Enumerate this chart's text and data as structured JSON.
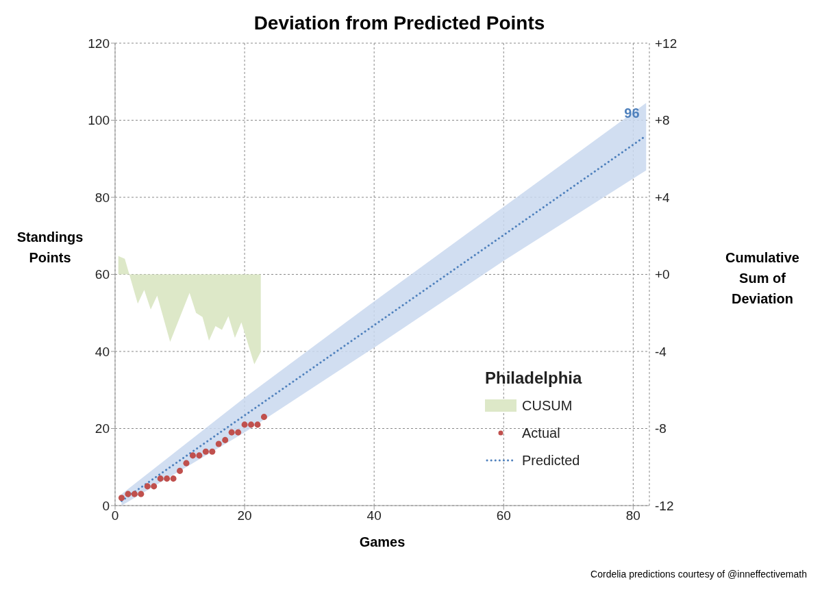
{
  "chart_data": {
    "type": "line",
    "title": "Deviation from Predicted Points",
    "xlabel": "Games",
    "ylabel": "Standings Points",
    "y2label": "Cumulative Sum of Deviation",
    "legend_title": "Philadelphia",
    "xlim": [
      0,
      82.5
    ],
    "xticks": [
      0,
      20,
      40,
      60,
      80
    ],
    "ylim": [
      0,
      120
    ],
    "yticks": [
      0,
      20,
      40,
      60,
      80,
      100,
      120
    ],
    "y2lim": [
      -12,
      12
    ],
    "y2ticks": [
      {
        "value": -12,
        "label": "-12"
      },
      {
        "value": -8,
        "label": "-8"
      },
      {
        "value": -4,
        "label": "-4"
      },
      {
        "value": 0,
        "label": "+0"
      },
      {
        "value": 4,
        "label": "+4"
      },
      {
        "value": 8,
        "label": "+8"
      },
      {
        "value": 12,
        "label": "+12"
      }
    ],
    "grid": true,
    "legend": "bottom right",
    "series": [
      {
        "name": "CUSUM",
        "type": "area",
        "axis": "y2",
        "color": "#dde8c8",
        "x": [
          0.5,
          1.5,
          3.5,
          4.5,
          5.5,
          6.5,
          8.5,
          11.5,
          12.5,
          13.5,
          14.5,
          15.5,
          16.5,
          17.5,
          18.5,
          19.5,
          21.5,
          22.5
        ],
        "values": [
          0.95,
          0.81,
          -1.52,
          -0.81,
          -1.82,
          -1.1,
          -3.5,
          -0.96,
          -2.0,
          -2.21,
          -3.44,
          -2.68,
          -2.88,
          -2.17,
          -3.3,
          -2.49,
          -4.67,
          -4.02
        ]
      },
      {
        "name": "Actual",
        "type": "scatter",
        "marker": "circle",
        "color": "#c0504d",
        "x": [
          1,
          2,
          3,
          4,
          5,
          6,
          7,
          8,
          9,
          10,
          11,
          12,
          13,
          14,
          15,
          16,
          17,
          18,
          19,
          20,
          21,
          22,
          23
        ],
        "values": [
          2,
          3,
          3,
          3,
          5,
          5,
          7,
          7,
          7,
          9,
          11,
          13,
          13,
          14,
          14,
          16,
          17,
          19,
          19,
          21,
          21,
          21,
          23
        ]
      },
      {
        "name": "Predicted",
        "type": "line",
        "line_style": "dotted",
        "color": "#4f81bd",
        "x": [
          1,
          20,
          40,
          60,
          82
        ],
        "values": [
          1.2,
          23.4,
          46.8,
          70.2,
          96
        ],
        "lower": [
          0,
          19,
          41,
          63.5,
          87
        ],
        "upper": [
          3,
          28,
          53,
          77.5,
          104.5
        ]
      }
    ],
    "annotations": [
      {
        "text": "96",
        "x": 82,
        "y": 96
      },
      "Cordelia predictions courtesy of @inneffectivemath"
    ]
  }
}
